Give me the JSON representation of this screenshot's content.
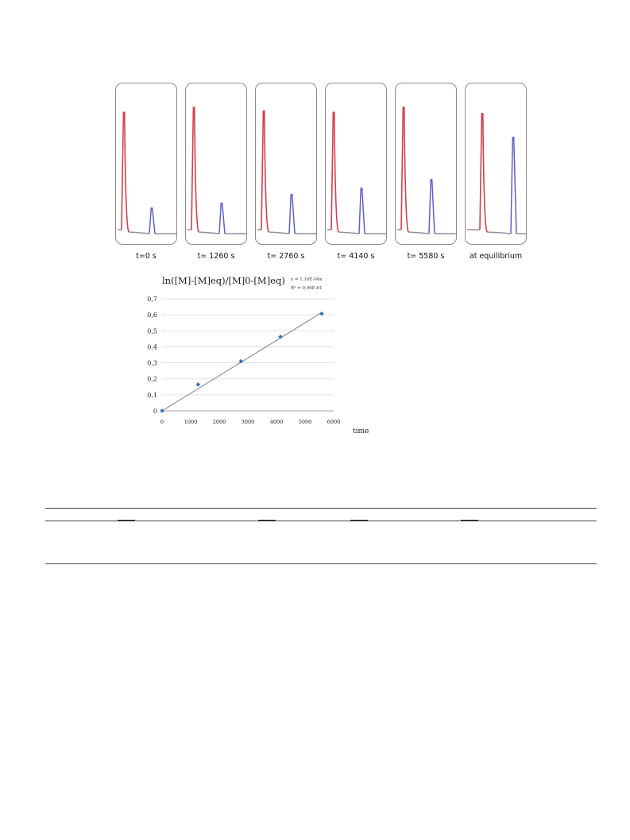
{
  "chromatograms": {
    "colors": {
      "first_peak": "#d0404e",
      "second_peak": "#5e62c4",
      "baseline": "#9a8ca0"
    },
    "panels": [
      {
        "label": "t=0 s",
        "first_peak_height": 0.96,
        "second_peak_height": 0.2
      },
      {
        "label": "t= 1260 s",
        "first_peak_height": 1.0,
        "second_peak_height": 0.24
      },
      {
        "label": "t= 2760 s",
        "first_peak_height": 0.97,
        "second_peak_height": 0.31
      },
      {
        "label": "t= 4140 s",
        "first_peak_height": 0.96,
        "second_peak_height": 0.36
      },
      {
        "label": "t= 5580 s",
        "first_peak_height": 1.0,
        "second_peak_height": 0.43
      },
      {
        "label": "at equilibrium",
        "first_peak_height": 0.95,
        "second_peak_height": 0.77
      }
    ]
  },
  "chart_data": {
    "type": "scatter",
    "title": "ln([M]-[M]eq)/[M]0-[M]eq)",
    "xlabel": "time",
    "ylabel": "",
    "xlim": [
      0,
      6000
    ],
    "ylim": [
      0,
      0.7
    ],
    "xticks": [
      "0",
      "1000",
      "2000",
      "3000",
      "4000",
      "5000",
      "6000"
    ],
    "yticks": [
      "0",
      "0,1",
      "0,2",
      "0,3",
      "0,4",
      "0,5",
      "0,6",
      "0,7"
    ],
    "grid": "horizontal",
    "point_color": "#3b6fc0",
    "trendline_color": "#8c8c8c",
    "points": [
      {
        "x": 0,
        "y": 0.0
      },
      {
        "x": 1260,
        "y": 0.165
      },
      {
        "x": 2760,
        "y": 0.31
      },
      {
        "x": 4140,
        "y": 0.463
      },
      {
        "x": 5580,
        "y": 0.607
      }
    ],
    "trendline": {
      "slope": 0.00011
    },
    "equation": "y = 1,10E-04x",
    "r_squared": "R² = 9,96E-01"
  }
}
